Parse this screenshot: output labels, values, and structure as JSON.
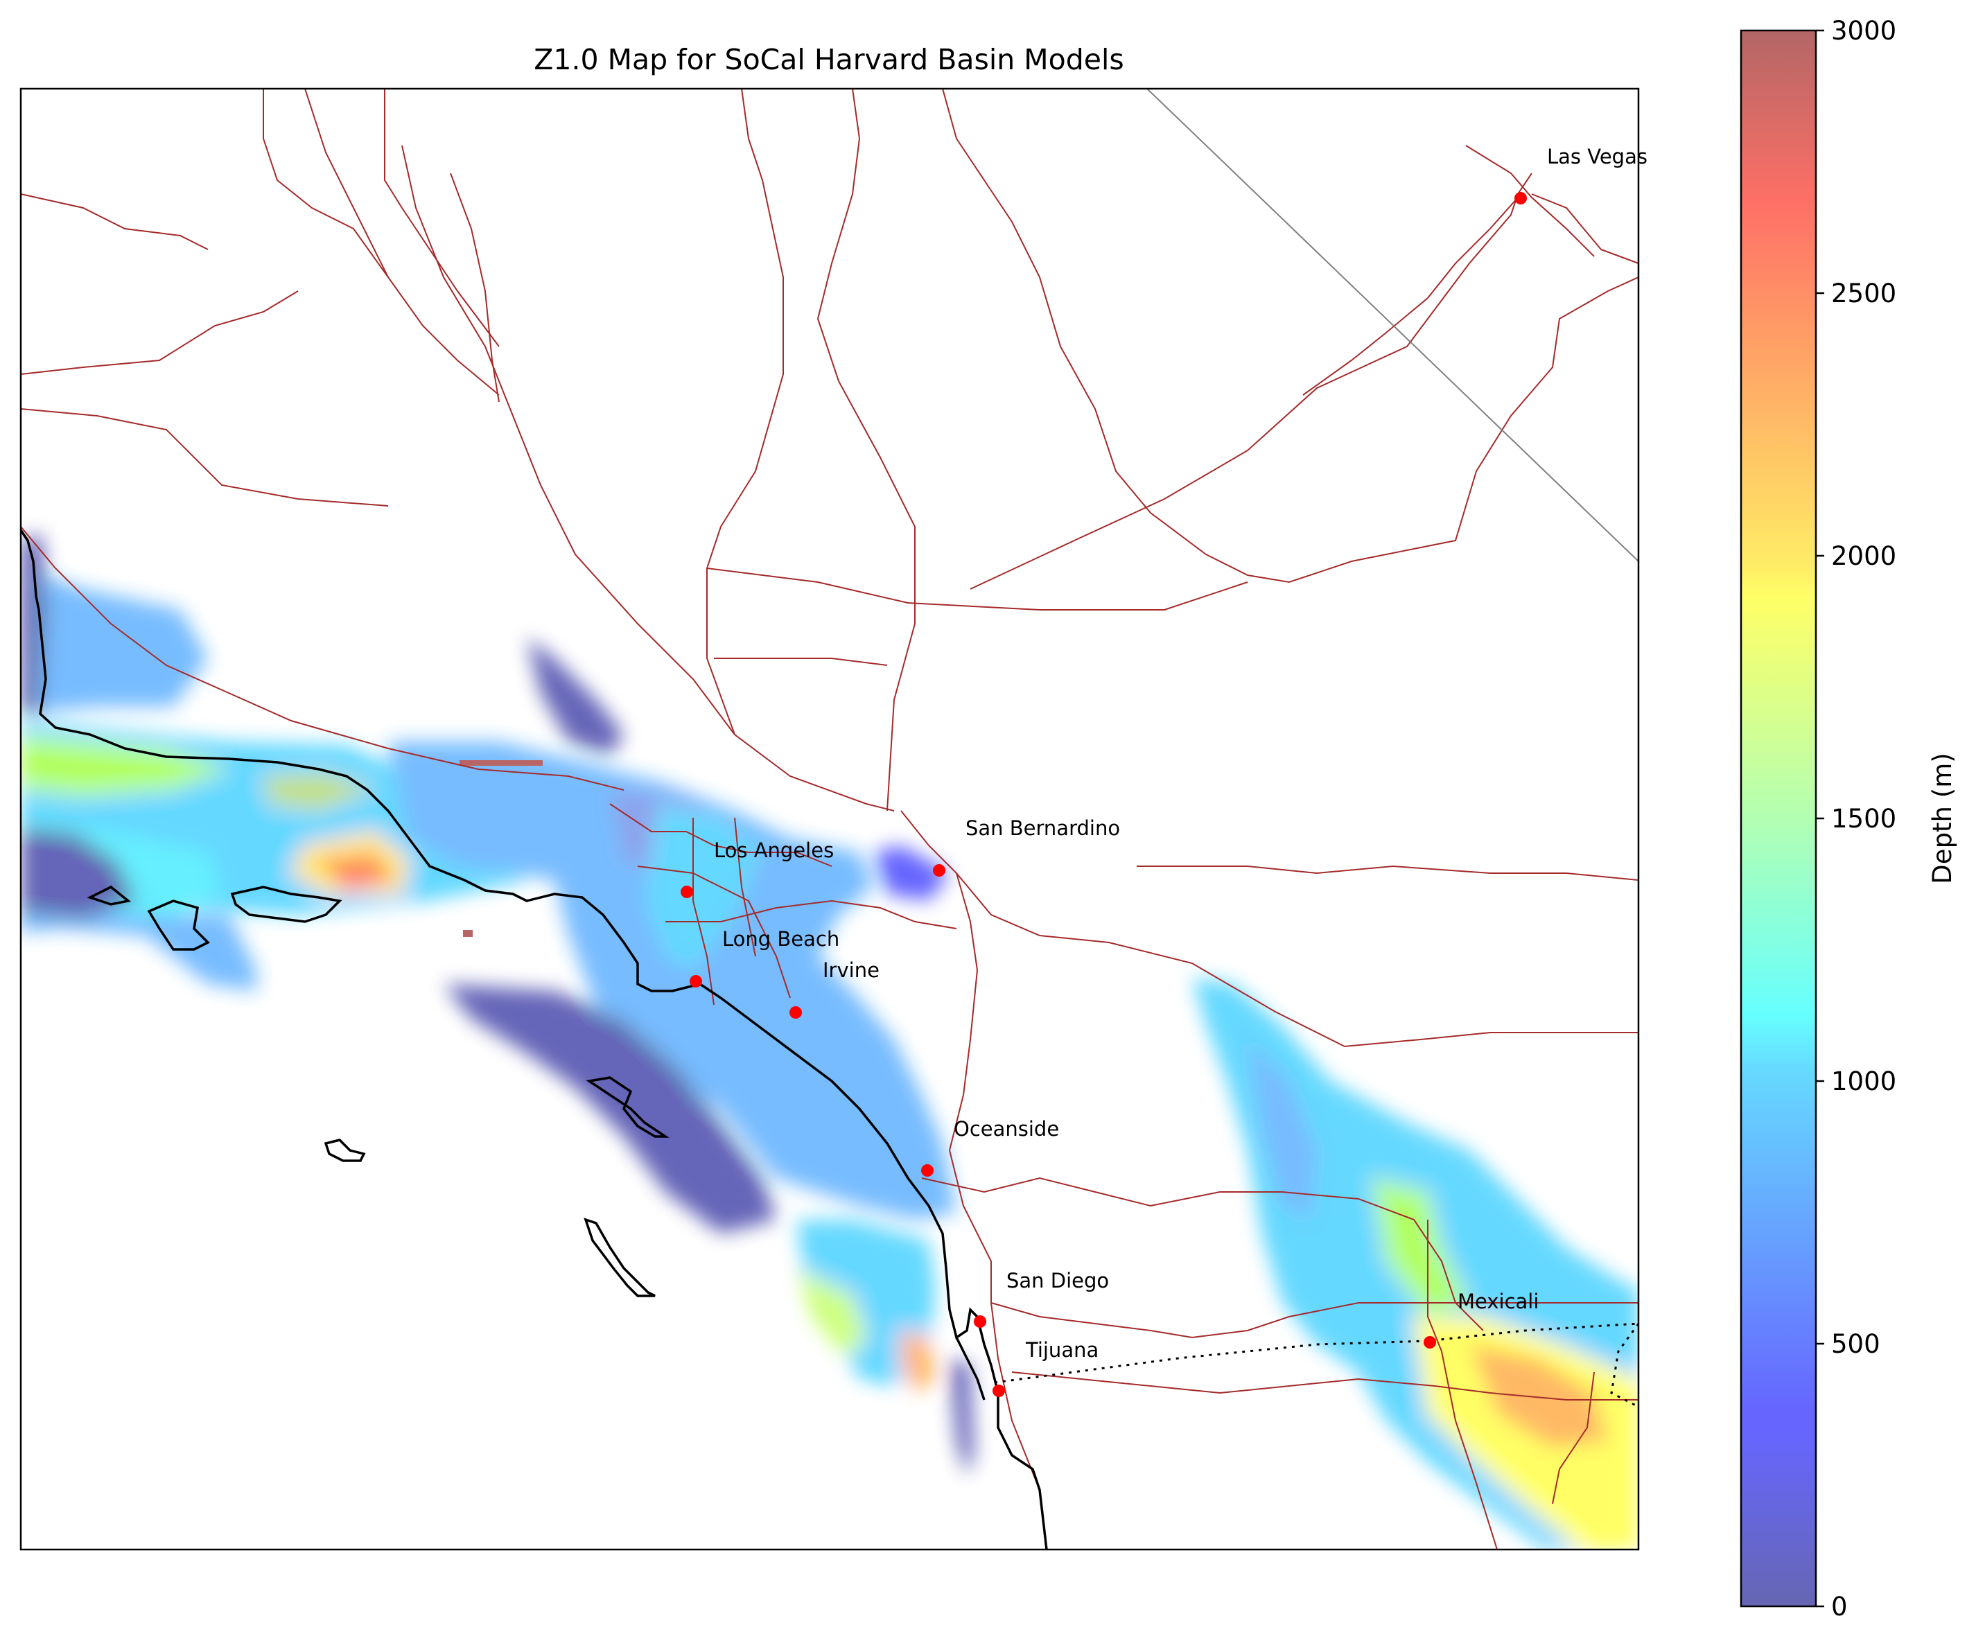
{
  "title": "Z1.0 Map for SoCal Harvard Basin Models",
  "colorbar": {
    "label": "Depth (m)",
    "range": [
      0,
      3000
    ],
    "ticks": [
      "0",
      "500",
      "1000",
      "1500",
      "2000",
      "2500",
      "3000"
    ],
    "colormap": "jet (alpha 0.6)"
  },
  "cities": [
    {
      "name": "Las Vegas",
      "lon": -115.14,
      "lat": 36.17
    },
    {
      "name": "San Bernardino",
      "lon": -117.29,
      "lat": 34.11
    },
    {
      "name": "Los Angeles",
      "lon": -118.24,
      "lat": 34.05
    },
    {
      "name": "Long Beach",
      "lon": -118.19,
      "lat": 33.77
    },
    {
      "name": "Irvine",
      "lon": -117.83,
      "lat": 33.68
    },
    {
      "name": "Oceanside",
      "lon": -117.38,
      "lat": 33.2
    },
    {
      "name": "San Diego",
      "lon": -117.16,
      "lat": 32.72
    },
    {
      "name": "Tijuana",
      "lon": -117.04,
      "lat": 32.53
    },
    {
      "name": "Mexicali",
      "lon": -115.45,
      "lat": 32.62
    }
  ],
  "colors": {
    "roads": "#a52a2a",
    "coastline": "#000000",
    "city_marker": "#ff0000",
    "state_line": "#808080"
  }
}
